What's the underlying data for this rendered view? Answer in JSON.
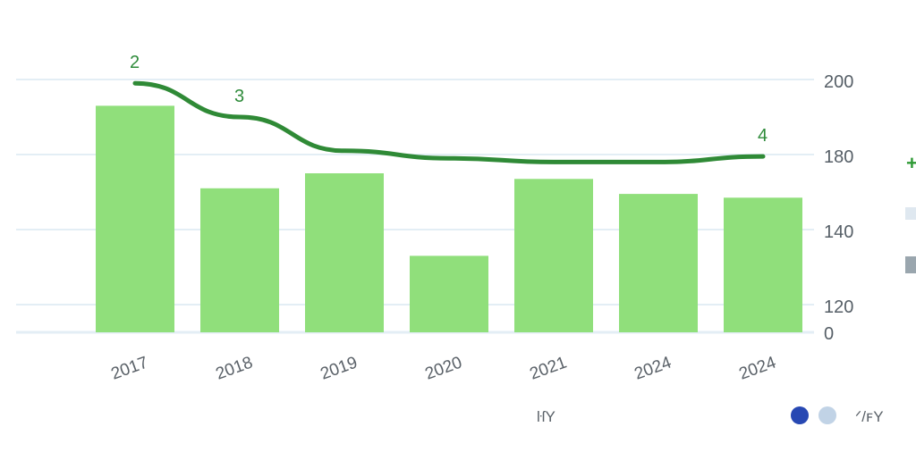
{
  "colors": {
    "bar": "#90df7b",
    "line": "#2f8a36",
    "grid": "#e3eef5",
    "legend_dark_blue": "#2748b3",
    "legend_light_blue": "#c1d3e6",
    "legend_plus": "#2f9a36",
    "legend_swatch_light": "#dfe8f0",
    "legend_swatch_gray": "#9aa6ae"
  },
  "legend": {
    "plus_symbol": "+",
    "caption_left": "ŀſY",
    "caption_right": "ᐟ/ꜰY"
  },
  "chart_data": {
    "type": "bar",
    "categories": [
      "2017",
      "2018",
      "2019",
      "2020",
      "2021",
      "2024",
      "2024"
    ],
    "y_ticks": [
      "0",
      "120",
      "140",
      "180",
      "200"
    ],
    "values": [
      193,
      162,
      170,
      133,
      167,
      159,
      157
    ],
    "line": {
      "values": [
        199,
        190,
        181,
        178,
        176,
        176,
        179
      ],
      "point_labels": [
        {
          "index": 0,
          "text": "2"
        },
        {
          "index": 1,
          "text": "3"
        },
        {
          "index": 6,
          "text": "4"
        }
      ]
    },
    "title": "",
    "xlabel": "",
    "ylabel": "",
    "grid": true,
    "y_axis_position": "right"
  }
}
